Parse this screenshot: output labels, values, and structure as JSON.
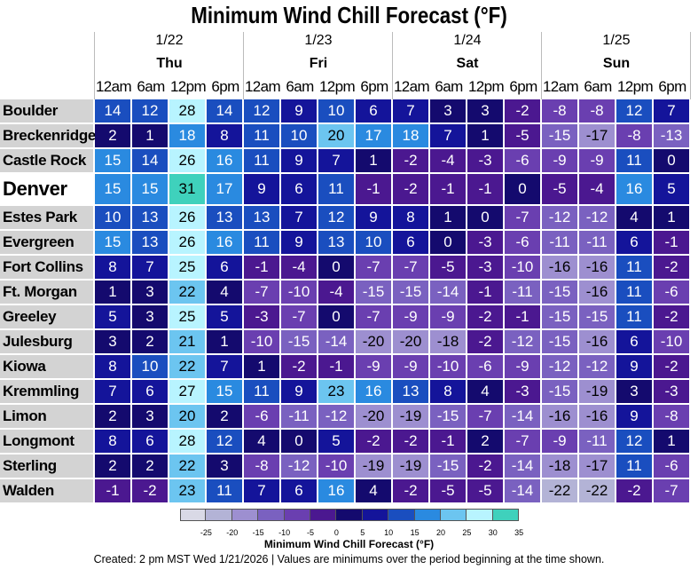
{
  "title": "Minimum Wind Chill Forecast (°F)",
  "footer": "Created: 2 pm MST Wed 1/21/2026  |  Values are minimums over the period beginning at the time shown.",
  "chart_data": {
    "type": "heatmap",
    "title": "Minimum Wind Chill Forecast (°F)",
    "days": [
      {
        "date": "1/22",
        "dow": "Thu"
      },
      {
        "date": "1/23",
        "dow": "Fri"
      },
      {
        "date": "1/24",
        "dow": "Sat"
      },
      {
        "date": "1/25",
        "dow": "Sun"
      }
    ],
    "hours": [
      "12am",
      "6am",
      "12pm",
      "6pm"
    ],
    "rows": [
      {
        "city": "Boulder",
        "values": [
          14,
          12,
          28,
          14,
          12,
          9,
          10,
          6,
          7,
          3,
          3,
          -2,
          -8,
          -8,
          12,
          7
        ]
      },
      {
        "city": "Breckenridge",
        "values": [
          2,
          1,
          18,
          8,
          11,
          10,
          20,
          17,
          18,
          7,
          1,
          -5,
          -15,
          -17,
          -8,
          -13
        ]
      },
      {
        "city": "Castle Rock",
        "values": [
          15,
          14,
          26,
          16,
          11,
          9,
          7,
          1,
          -2,
          -4,
          -3,
          -6,
          -9,
          -9,
          11,
          0
        ]
      },
      {
        "city": "Denver",
        "values": [
          15,
          15,
          31,
          17,
          9,
          6,
          11,
          -1,
          -2,
          -1,
          -1,
          0,
          -5,
          -4,
          16,
          5
        ]
      },
      {
        "city": "Estes Park",
        "values": [
          10,
          13,
          26,
          13,
          13,
          7,
          12,
          9,
          8,
          1,
          0,
          -7,
          -12,
          -12,
          4,
          1
        ]
      },
      {
        "city": "Evergreen",
        "values": [
          15,
          13,
          26,
          16,
          11,
          9,
          13,
          10,
          6,
          0,
          -3,
          -6,
          -11,
          -11,
          6,
          -1
        ]
      },
      {
        "city": "Fort Collins",
        "values": [
          8,
          7,
          25,
          6,
          -1,
          -4,
          0,
          -7,
          -7,
          -5,
          -3,
          -10,
          -16,
          -16,
          11,
          -2
        ]
      },
      {
        "city": "Ft. Morgan",
        "values": [
          1,
          3,
          22,
          4,
          -7,
          -10,
          -4,
          -15,
          -15,
          -14,
          -1,
          -11,
          -15,
          -16,
          11,
          -6
        ]
      },
      {
        "city": "Greeley",
        "values": [
          5,
          3,
          25,
          5,
          -3,
          -7,
          0,
          -7,
          -9,
          -9,
          -2,
          -1,
          -15,
          -15,
          11,
          -2
        ]
      },
      {
        "city": "Julesburg",
        "values": [
          3,
          2,
          21,
          1,
          -10,
          -15,
          -14,
          -20,
          -20,
          -18,
          -2,
          -12,
          -15,
          -16,
          6,
          -10
        ]
      },
      {
        "city": "Kiowa",
        "values": [
          8,
          10,
          22,
          7,
          1,
          -2,
          -1,
          -9,
          -9,
          -10,
          -6,
          -9,
          -12,
          -12,
          9,
          -2
        ]
      },
      {
        "city": "Kremmling",
        "values": [
          7,
          6,
          27,
          15,
          11,
          9,
          23,
          16,
          13,
          8,
          4,
          -3,
          -15,
          -19,
          3,
          -3
        ]
      },
      {
        "city": "Limon",
        "values": [
          2,
          3,
          20,
          2,
          -6,
          -11,
          -12,
          -20,
          -19,
          -15,
          -7,
          -14,
          -16,
          -16,
          9,
          -8
        ]
      },
      {
        "city": "Longmont",
        "values": [
          8,
          6,
          28,
          12,
          4,
          0,
          5,
          -2,
          -2,
          -1,
          2,
          -7,
          -9,
          -11,
          12,
          1
        ]
      },
      {
        "city": "Sterling",
        "values": [
          2,
          2,
          22,
          3,
          -8,
          -12,
          -10,
          -19,
          -19,
          -15,
          -2,
          -14,
          -18,
          -17,
          11,
          -6
        ]
      },
      {
        "city": "Walden",
        "values": [
          -1,
          -2,
          23,
          11,
          7,
          6,
          16,
          4,
          -2,
          -5,
          -5,
          -14,
          -22,
          -22,
          -2,
          -7
        ]
      }
    ],
    "colorbar": {
      "label": "Minimum Wind Chill Forecast (°F)",
      "ticks": [
        "-25",
        "-20",
        "-15",
        "-10",
        "-5",
        "0",
        "5",
        "10",
        "15",
        "20",
        "25",
        "30",
        "35"
      ],
      "colors": [
        "#d9d9e6",
        "#b3b3d6",
        "#9d8fd0",
        "#7a61c0",
        "#6a3fb0",
        "#4b1890",
        "#140a6e",
        "#14149a",
        "#1a4ebf",
        "#2a8ae0",
        "#6cc5f0",
        "#b8f4ff",
        "#3fd1bc"
      ]
    },
    "highlight_city": "Denver"
  }
}
